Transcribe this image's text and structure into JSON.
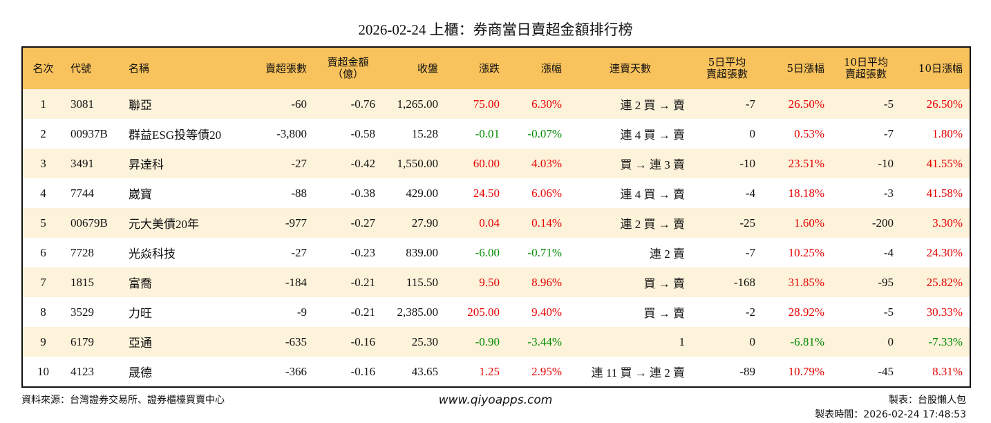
{
  "header": {
    "title": "2026-02-24 上櫃：券商當日賣超金額排行榜"
  },
  "table": {
    "header_color": "#f8c25c",
    "stripe_color": "#fdf2da",
    "positive_color": "#e60000",
    "negative_color": "#008a00",
    "columns": [
      {
        "label": "名次",
        "align": "center"
      },
      {
        "label": "代號",
        "align": "left"
      },
      {
        "label": "名稱",
        "align": "left"
      },
      {
        "label": "賣超張數",
        "align": "right"
      },
      {
        "label": "賣超金額\n（億）",
        "align": "right"
      },
      {
        "label": "收盤",
        "align": "right"
      },
      {
        "label": "漲跌",
        "align": "right",
        "signed": true
      },
      {
        "label": "漲幅",
        "align": "right",
        "signed": true
      },
      {
        "label": "連賣天數",
        "align": "right"
      },
      {
        "label": "5日平均\n賣超張數",
        "align": "right"
      },
      {
        "label": "5日漲幅",
        "align": "right",
        "signed": true
      },
      {
        "label": "10日平均\n賣超張數",
        "align": "right"
      },
      {
        "label": "10日漲幅",
        "align": "right",
        "signed": true
      }
    ],
    "rows": [
      [
        "1",
        "3081",
        "聯亞",
        "-60",
        "-0.76",
        "1,265.00",
        "75.00",
        "6.30%",
        "連 2 買 → 賣",
        "-7",
        "26.50%",
        "-5",
        "26.50%"
      ],
      [
        "2",
        "00937B",
        "群益ESG投等債20",
        "-3,800",
        "-0.58",
        "15.28",
        "-0.01",
        "-0.07%",
        "連 4 買 → 賣",
        "0",
        "0.53%",
        "-7",
        "1.80%"
      ],
      [
        "3",
        "3491",
        "昇達科",
        "-27",
        "-0.42",
        "1,550.00",
        "60.00",
        "4.03%",
        "買 → 連 3 賣",
        "-10",
        "23.51%",
        "-10",
        "41.55%"
      ],
      [
        "4",
        "7744",
        "崴寶",
        "-88",
        "-0.38",
        "429.00",
        "24.50",
        "6.06%",
        "連 4 買 → 賣",
        "-4",
        "18.18%",
        "-3",
        "41.58%"
      ],
      [
        "5",
        "00679B",
        "元大美債20年",
        "-977",
        "-0.27",
        "27.90",
        "0.04",
        "0.14%",
        "連 2 買 → 賣",
        "-25",
        "1.60%",
        "-200",
        "3.30%"
      ],
      [
        "6",
        "7728",
        "光焱科技",
        "-27",
        "-0.23",
        "839.00",
        "-6.00",
        "-0.71%",
        "連 2 賣",
        "-7",
        "10.25%",
        "-4",
        "24.30%"
      ],
      [
        "7",
        "1815",
        "富喬",
        "-184",
        "-0.21",
        "115.50",
        "9.50",
        "8.96%",
        "買 → 賣",
        "-168",
        "31.85%",
        "-95",
        "25.82%"
      ],
      [
        "8",
        "3529",
        "力旺",
        "-9",
        "-0.21",
        "2,385.00",
        "205.00",
        "9.40%",
        "買 → 賣",
        "-2",
        "28.92%",
        "-5",
        "30.33%"
      ],
      [
        "9",
        "6179",
        "亞通",
        "-635",
        "-0.16",
        "25.30",
        "-0.90",
        "-3.44%",
        "1",
        "0",
        "-6.81%",
        "0",
        "-7.33%"
      ],
      [
        "10",
        "4123",
        "晟德",
        "-366",
        "-0.16",
        "43.65",
        "1.25",
        "2.95%",
        "連 11 買 → 連 2 賣",
        "-89",
        "10.79%",
        "-45",
        "8.31%"
      ]
    ]
  },
  "footer": {
    "source": "資料來源：台灣證券交易所、證券櫃檯買賣中心",
    "website": "www.qiyoapps.com",
    "author": "製表：台股懶人包",
    "time": "製表時間：2026-02-24 17:48:53"
  }
}
